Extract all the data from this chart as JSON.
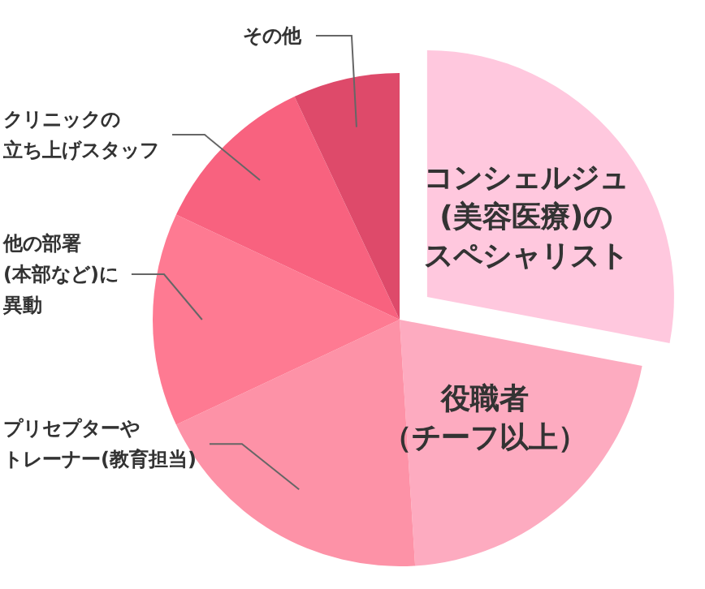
{
  "chart_data": {
    "type": "pie",
    "categories": [
      "コンシェルジュ(美容医療)のスペシャリスト",
      "役職者（チーフ以上）",
      "プリセプターやトレーナー(教育担当)",
      "他の部署(本部など)に異動",
      "クリニックの立ち上げスタッフ",
      "その他"
    ],
    "values": [
      28,
      21,
      19,
      14,
      11,
      7
    ],
    "colors": [
      "#ffc8de",
      "#fdabc0",
      "#fd92a7",
      "#fe7a92",
      "#f8627f",
      "#de4a6a"
    ],
    "legend": false
  }
}
